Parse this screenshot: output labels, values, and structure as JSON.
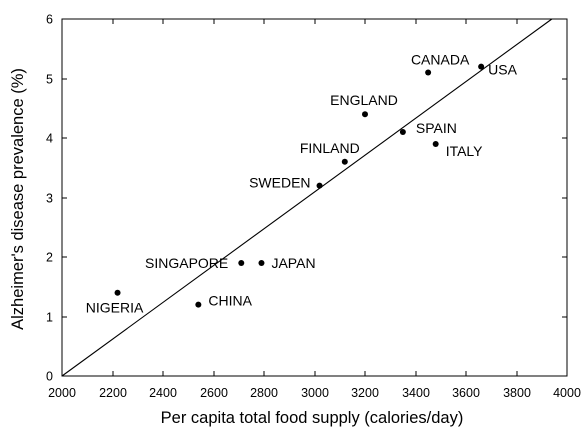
{
  "chart_data": {
    "type": "scatter",
    "xlabel": "Per capita total food supply (calories/day)",
    "ylabel": "Alzheimer's disease prevalence (%)",
    "xlim": [
      2000,
      4000
    ],
    "ylim": [
      0,
      6
    ],
    "xticks": [
      2000,
      2200,
      2400,
      2600,
      2800,
      3000,
      3200,
      3400,
      3600,
      3800,
      4000
    ],
    "yticks": [
      0,
      1,
      2,
      3,
      4,
      5,
      6
    ],
    "grid": false,
    "colors": {
      "axes": "#000000",
      "markers": "#000000",
      "trendline": "#000000"
    },
    "points": [
      {
        "label": "NIGERIA",
        "x": 2220,
        "y": 1.4
      },
      {
        "label": "CHINA",
        "x": 2540,
        "y": 1.2
      },
      {
        "label": "SINGAPORE",
        "x": 2710,
        "y": 1.9
      },
      {
        "label": "JAPAN",
        "x": 2790,
        "y": 1.9
      },
      {
        "label": "SWEDEN",
        "x": 3020,
        "y": 3.2
      },
      {
        "label": "FINLAND",
        "x": 3120,
        "y": 3.6
      },
      {
        "label": "ENGLAND",
        "x": 3200,
        "y": 4.4
      },
      {
        "label": "SPAIN",
        "x": 3350,
        "y": 4.1
      },
      {
        "label": "CANADA",
        "x": 3450,
        "y": 5.1
      },
      {
        "label": "ITALY",
        "x": 3480,
        "y": 3.9
      },
      {
        "label": "USA",
        "x": 3660,
        "y": 5.2
      }
    ],
    "trendline": {
      "x": [
        2000,
        3940
      ],
      "y": [
        0,
        6
      ]
    }
  }
}
